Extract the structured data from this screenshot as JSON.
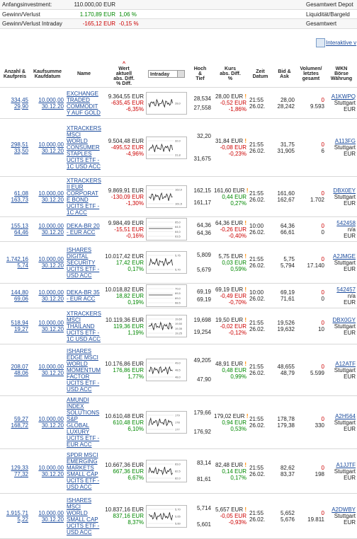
{
  "summary": [
    {
      "label": "Anfangsinvestment:",
      "value": "110.000,00 EUR",
      "pct": "",
      "right": "Gesamtwert Depot"
    },
    {
      "label": "Gewinn/Verlust",
      "value": "1.170,89 EUR",
      "pct": "1,06 %",
      "right": "Liquidität/Bargeld"
    },
    {
      "label": "Gewinn/Verlust Intraday",
      "value": "-165,12 EUR",
      "pct": "-0,15 %",
      "right": "Gesamtwert"
    }
  ],
  "link": "Interaktive v",
  "header": [
    [
      "Anzahl &",
      "Kaufpreis"
    ],
    [
      "Kaufsumme",
      "Kaufdatum"
    ],
    [
      "Name"
    ],
    [
      "Wert",
      "aktuell",
      "abs. Diff.",
      "% Diff."
    ],
    [
      "Intraday"
    ],
    [
      "Hoch",
      "&",
      "Tief"
    ],
    [
      "Kurs",
      "abs. Diff.",
      "%"
    ],
    [
      "Zeit",
      "Datum"
    ],
    [
      "Bid &",
      "Ask"
    ],
    [
      "Volumen/",
      "letztes",
      "gesamt"
    ],
    [
      "WKN",
      "Börse",
      "Währung"
    ]
  ],
  "rows": [
    {
      "qty": "334,45",
      "price": "29,90",
      "sum": "10.000,00",
      "date": "30.12.20",
      "name": "EXCHANGE TRADED COMMODITY AUF GOLD",
      "value": "9.364,55 EUR",
      "diff": "-635,45 EUR",
      "pct": "-6,35%",
      "chart": [
        "28,0"
      ],
      "high": "28,534",
      "low": "27,558",
      "kurs": "28,00 EUR",
      "kdiff": "-0,52 EUR",
      "kpct": "-1,86%",
      "time": "21:55",
      "day": "26.02.",
      "bid": "28,00",
      "ask": "28,242",
      "last": "0",
      "total": "9.593",
      "wkn": "A1KWPQ",
      "exch": "Stuttgart",
      "cur": "EUR"
    },
    {
      "qty": "298,51",
      "price": "33,50",
      "sum": "10.000,00",
      "date": "30.12.20",
      "name": "XTRACKERS MSCI WORLD CONSUMER STAPLES UCITS ETF - 1C USD ACC",
      "value": "9.504,48 EUR",
      "diff": "-495,52 EUR",
      "pct": "-4,96%",
      "chart": [
        "32,0",
        "31,8"
      ],
      "high": "32,20",
      "low": "31,675",
      "kurs": "31,84 EUR",
      "kdiff": "-0,08 EUR",
      "kpct": "-0,23%",
      "time": "21:55",
      "day": "26.02.",
      "bid": "31,75",
      "ask": "31,905",
      "last": "0",
      "total": "6",
      "wkn": "A113FG",
      "exch": "Stuttgart",
      "cur": "EUR"
    },
    {
      "qty": "61,08",
      "price": "163,73",
      "sum": "10.000,00",
      "date": "30.12.20",
      "name": "XTRACKERS II EUR CORPORATE BOND UCITS ETF - 1C ACC",
      "value": "9.869,91 EUR",
      "diff": "-130,09 EUR",
      "pct": "-1,30%",
      "chart": [
        "162,0",
        "161,5"
      ],
      "high": "162,15",
      "low": "161,17",
      "kurs": "161,60 EUR",
      "kdiff": "0,44 EUR",
      "kpct": "0,27%",
      "time": "21:55",
      "day": "26.02.",
      "bid": "161,60",
      "ask": "162,67",
      "last": "0",
      "total": "1.702",
      "wkn": "DBX0EY",
      "exch": "Stuttgart",
      "cur": "EUR"
    },
    {
      "qty": "155,13",
      "price": "64,46",
      "sum": "10.000,00",
      "date": "30.12.20",
      "name": "DEKA-BR 20 - EUR ACC",
      "value": "9.984,49 EUR",
      "diff": "-15,51 EUR",
      "pct": "-0,16%",
      "chart": [
        "65,0",
        "64,5",
        "64,0",
        "63,5"
      ],
      "high": "64,36",
      "low": "64,36",
      "kurs": "64,36 EUR",
      "kdiff": "-0,26 EUR",
      "kpct": "-0,40%",
      "time": "10:00",
      "day": "26.02.",
      "bid": "64,36",
      "ask": "66,61",
      "last": "0",
      "total": "0",
      "wkn": "542458",
      "exch": "n/a",
      "cur": "EUR"
    },
    {
      "qty": "1.742,16",
      "price": "5,74",
      "sum": "10.000,00",
      "date": "30.12.20",
      "name": "ISHARES DIGITAL SECURITY UCITS ETF - USD ACC",
      "value": "10.017,42 EUR",
      "diff": "17,42 EUR",
      "pct": "0,17%",
      "chart": [
        "5,75",
        "5,70"
      ],
      "high": "5,809",
      "low": "5,679",
      "kurs": "5,75 EUR",
      "kdiff": "0,03 EUR",
      "kpct": "0,59%",
      "time": "21:55",
      "day": "26.02.",
      "bid": "5,75",
      "ask": "5,794",
      "last": "0",
      "total": "17.140",
      "wkn": "A2JMGE",
      "exch": "Stuttgart",
      "cur": "EUR"
    },
    {
      "qty": "144,80",
      "price": "69,06",
      "sum": "10.000,00",
      "date": "30.12.20",
      "name": "DEKA-BR 35 - EUR ACC",
      "value": "10.018,82 EUR",
      "diff": "18,82 EUR",
      "pct": "0,19%",
      "chart": [
        "70,0",
        "69,5",
        "69,0",
        "68,5"
      ],
      "high": "69,19",
      "low": "69,19",
      "kurs": "69,19 EUR",
      "kdiff": "-0,49 EUR",
      "kpct": "-0,70%",
      "time": "10:00",
      "day": "26.02.",
      "bid": "69,19",
      "ask": "71,61",
      "last": "0",
      "total": "0",
      "wkn": "542457",
      "exch": "n/a",
      "cur": "EUR"
    },
    {
      "qty": "518,94",
      "price": "19,27",
      "sum": "10.000,00",
      "date": "30.12.20",
      "name": "XTRACKERS MSCI THAILAND UCITS ETF - 1C USD ACC",
      "value": "10.119,36 EUR",
      "diff": "119,36 EUR",
      "pct": "1,19%",
      "chart": [
        "19,60",
        "19,50",
        "19,35",
        "19,25"
      ],
      "high": "19,698",
      "low": "19,254",
      "kurs": "19,50 EUR",
      "kdiff": "-0,02 EUR",
      "kpct": "-0,12%",
      "time": "21:55",
      "day": "26.02.",
      "bid": "19,526",
      "ask": "19,632",
      "last": "0",
      "total": "10",
      "wkn": "DBX0GY",
      "exch": "Stuttgart",
      "cur": "EUR"
    },
    {
      "qty": "208,07",
      "price": "48,06",
      "sum": "10.000,00",
      "date": "30.12.20",
      "name": "ISHARES EDGE MSCI WORLD MOMENTUM FACTOR UCITS ETF - USD ACC",
      "value": "10.176,86 EUR",
      "diff": "176,86 EUR",
      "pct": "1,77%",
      "chart": [
        "49,0",
        "48,5",
        "48,0"
      ],
      "high": "49,205",
      "low": "47,90",
      "kurs": "48,91 EUR",
      "kdiff": "0,48 EUR",
      "kpct": "0,99%",
      "time": "21:55",
      "day": "26.02.",
      "bid": "48,655",
      "ask": "48,79",
      "last": "0",
      "total": "5.599",
      "wkn": "A12ATF",
      "exch": "Stuttgart",
      "cur": "EUR"
    },
    {
      "qty": "59,27",
      "price": "168,72",
      "sum": "10.000,00",
      "date": "30.12.20",
      "name": "AMUNDI INDEX SOLUTIONS S&P GLOBAL LUXURY UCITS ETF - EUR ACC",
      "value": "10.610,48 EUR",
      "diff": "610,48 EUR",
      "pct": "6,10%",
      "chart": [
        "179",
        "178",
        "177"
      ],
      "high": "179,66",
      "low": "176,92",
      "kurs": "179,02 EUR",
      "kdiff": "0,94 EUR",
      "kpct": "0,53%",
      "time": "21:55",
      "day": "26.02.",
      "bid": "178,78",
      "ask": "179,38",
      "last": "0",
      "total": "330",
      "wkn": "A2H564",
      "exch": "Stuttgart",
      "cur": "EUR"
    },
    {
      "qty": "129,33",
      "price": "77,32",
      "sum": "10.000,00",
      "date": "30.12.20",
      "name": "SPDR MSCI EMERGING MARKETS SMALL CAP UCITS ETF - USD ACC",
      "value": "10.667,36 EUR",
      "diff": "667,36 EUR",
      "pct": "6,67%",
      "chart": [
        "83,0",
        "82,5",
        "82,0"
      ],
      "high": "83,14",
      "low": "81,61",
      "kurs": "82,48 EUR",
      "kdiff": "0,14 EUR",
      "kpct": "0,17%",
      "time": "21:55",
      "day": "26.02.",
      "bid": "82,62",
      "ask": "83,37",
      "last": "0",
      "total": "198",
      "wkn": "A1JJTF",
      "exch": "Stuttgart",
      "cur": "EUR"
    },
    {
      "qty": "1.915,71",
      "price": "5,22",
      "sum": "10.000,00",
      "date": "30.12.20",
      "name": "ISHARES MSCI WORLD SMALL CAP UCITS ETF - USD ACC",
      "value": "10.837,16 EUR",
      "diff": "837,16 EUR",
      "pct": "8,37%",
      "chart": [
        "5,70",
        "5,65",
        "5,60"
      ],
      "high": "5,714",
      "low": "5,601",
      "kurs": "5,657 EUR",
      "kdiff": "-0,05 EUR",
      "kpct": "-0,93%",
      "time": "21:55",
      "day": "26.02.",
      "bid": "5,652",
      "ask": "5,676",
      "last": "0",
      "total": "19.811",
      "wkn": "A2DWBY",
      "exch": "Stuttgart",
      "cur": "EUR"
    }
  ]
}
